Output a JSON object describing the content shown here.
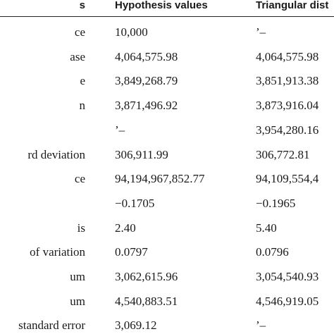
{
  "table": {
    "header": [
      "s",
      "Hypothesis values",
      "Triangular dist"
    ],
    "rows": [
      [
        "ce",
        "10,000",
        "’–"
      ],
      [
        "ase",
        "4,064,575.98",
        "4,064,575.98"
      ],
      [
        "e",
        "3,849,268.79",
        "3,851,913.38"
      ],
      [
        "n",
        "3,871,496.92",
        "3,873,916.04"
      ],
      [
        null,
        "’–",
        "3,954,280.16"
      ],
      [
        "rd deviation",
        "306,911.99",
        "306,772.81"
      ],
      [
        "ce",
        "94,194,967,852.77",
        "94,109,554,4"
      ],
      [
        null,
        "−0.1705",
        "−0.1965"
      ],
      [
        "is",
        "2.40",
        "5.40"
      ],
      [
        "of variation",
        "0.0797",
        "0.0796"
      ],
      [
        "um",
        "3,062,615.96",
        "3,054,540.93"
      ],
      [
        "um",
        "4,540,883.51",
        "4,546,919.05"
      ],
      [
        "standard error",
        "3,069.12",
        "’–"
      ]
    ]
  }
}
